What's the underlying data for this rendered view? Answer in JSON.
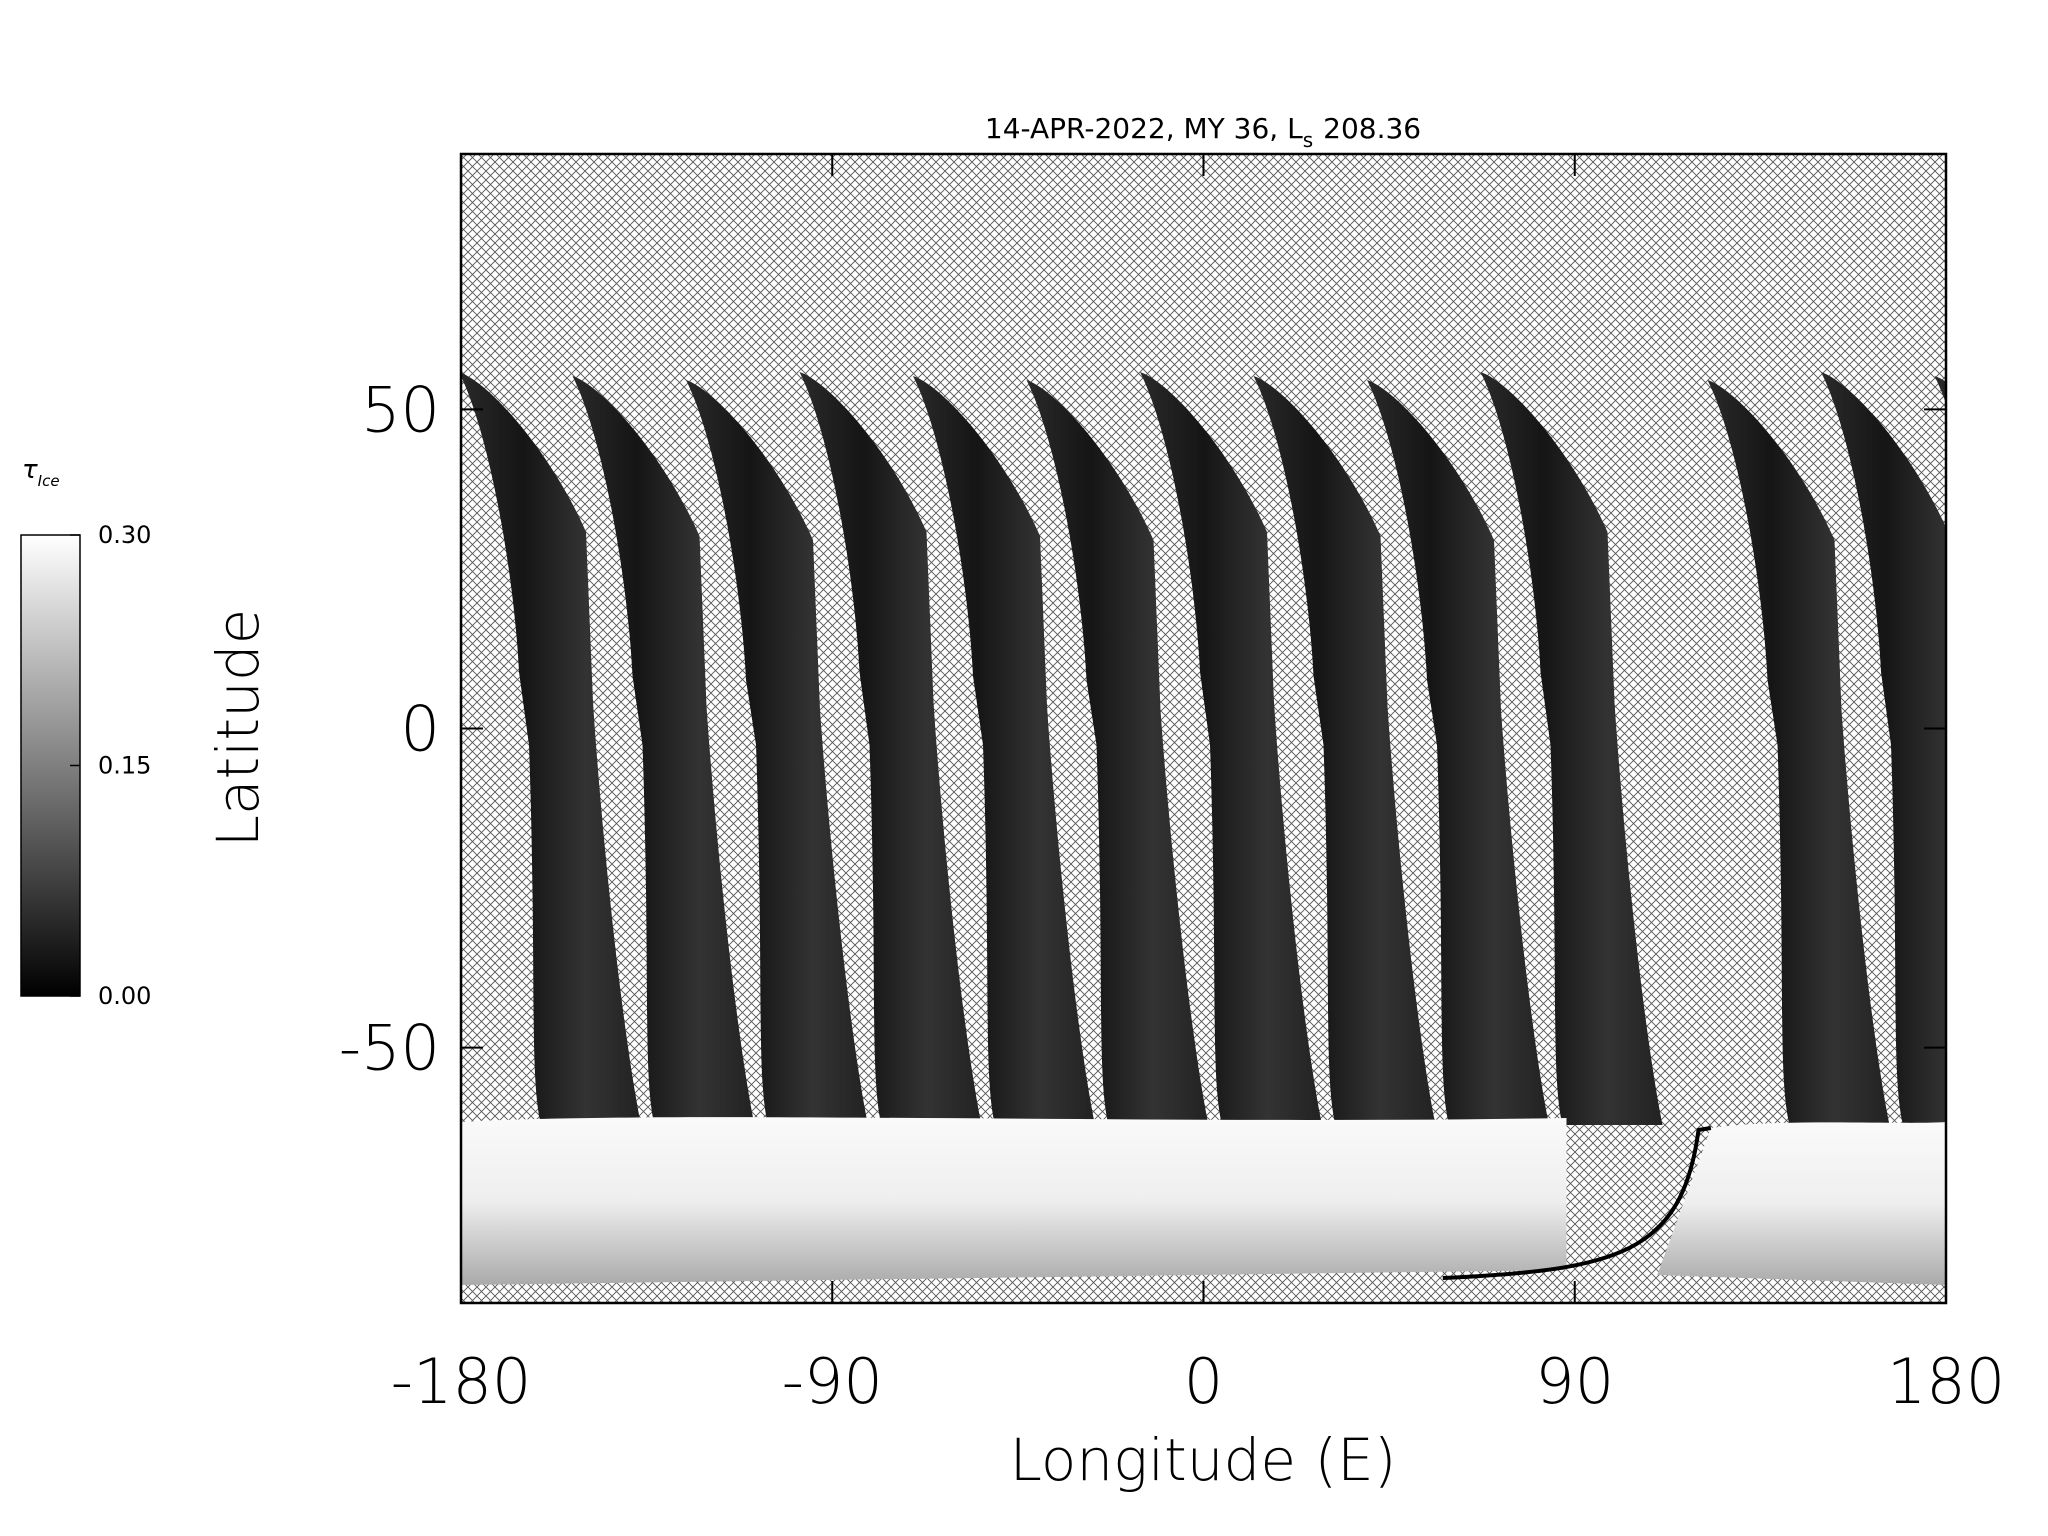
{
  "chart_data": {
    "type": "map",
    "title": "14-APR-2022, MY 36,  L",
    "title_subscript": "s",
    "title_value": "208.36",
    "x_label": "Longitude (E)",
    "y_label": "Latitude",
    "xlim": [
      -180,
      180
    ],
    "ylim": [
      -90,
      90
    ],
    "xticks": [
      -180,
      -90,
      0,
      90,
      180
    ],
    "yticks": [
      -50,
      0,
      50
    ],
    "colorbar": {
      "title": "τ",
      "title_subscript": "Ice",
      "lim": [
        0,
        0.3
      ],
      "ticks": [
        {
          "value": 0,
          "label": "0.00"
        },
        {
          "value": 0.15,
          "label": "0.15"
        },
        {
          "value": 0.3,
          "label": "0.30"
        }
      ]
    }
  }
}
